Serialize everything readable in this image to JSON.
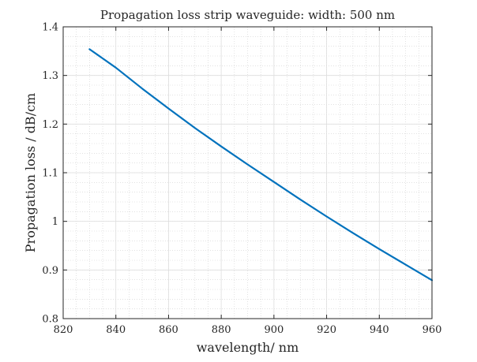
{
  "chart_data": {
    "type": "line",
    "title": "Propagation loss strip waveguide: width: 500 nm",
    "xlabel": "wavelength/ nm",
    "ylabel": "Propagation loss / dB/cm",
    "xlim": [
      820,
      960
    ],
    "ylim": [
      0.8,
      1.4
    ],
    "xticks": [
      "820",
      "840",
      "860",
      "880",
      "900",
      "920",
      "940",
      "960"
    ],
    "yticks": [
      "0.8",
      "0.9",
      "1",
      "1.1",
      "1.2",
      "1.3",
      "1.4"
    ],
    "grid": "major and minor (dotted minor)",
    "series": [
      {
        "color": "#0072bd",
        "x": [
          830,
          840,
          850,
          860,
          870,
          880,
          890,
          900,
          910,
          920,
          930,
          940,
          950,
          960
        ],
        "y": [
          1.354,
          1.316,
          1.273,
          1.232,
          1.192,
          1.154,
          1.117,
          1.081,
          1.045,
          1.01,
          0.976,
          0.943,
          0.911,
          0.879
        ]
      }
    ]
  }
}
